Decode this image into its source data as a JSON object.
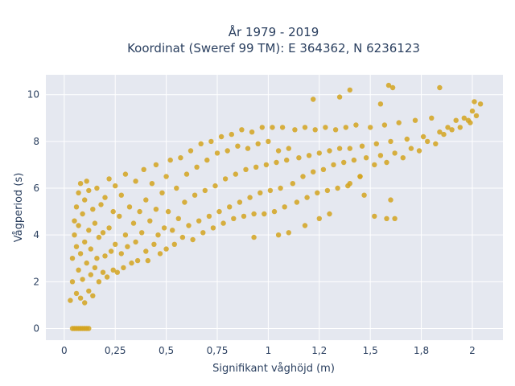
{
  "chart_data": {
    "type": "scatter",
    "title_line1": "År 1979 - 2019",
    "title_line2": "Koordinat (Sweref 99 TM): E 364362, N 6236123",
    "xlabel": "Signifikant våghöjd (m)",
    "ylabel": "Vågperiod (s)",
    "xlim": [
      -0.09,
      2.15
    ],
    "ylim": [
      -0.5,
      10.85
    ],
    "x_ticks": [
      0,
      0.25,
      0.5,
      0.75,
      1,
      1.25,
      1.5,
      1.75,
      2
    ],
    "x_tick_labels": [
      "0",
      "0,25",
      "0,5",
      "0,75",
      "1",
      "1,2",
      "1,5",
      "1,8",
      "2"
    ],
    "y_ticks": [
      0,
      2,
      4,
      6,
      8,
      10
    ],
    "y_tick_labels": [
      "0",
      "2",
      "4",
      "6",
      "8",
      "10"
    ],
    "grid": true,
    "colors": {
      "marker": "#d4a31e",
      "plot_bg": "#e5e8f0",
      "grid": "#ffffff",
      "text": "#2a3f5f"
    },
    "series": [
      {
        "values": [
          [
            0.04,
            0
          ],
          [
            0.05,
            0
          ],
          [
            0.06,
            0
          ],
          [
            0.07,
            0
          ],
          [
            0.08,
            0
          ],
          [
            0.09,
            0
          ],
          [
            0.1,
            0
          ],
          [
            0.11,
            0
          ],
          [
            0.12,
            0
          ],
          [
            0.03,
            1.2
          ],
          [
            0.04,
            2.0
          ],
          [
            0.04,
            3.0
          ],
          [
            0.05,
            4.0
          ],
          [
            0.05,
            4.6
          ],
          [
            0.06,
            1.5
          ],
          [
            0.06,
            3.5
          ],
          [
            0.06,
            5.2
          ],
          [
            0.07,
            2.5
          ],
          [
            0.07,
            4.4
          ],
          [
            0.07,
            5.8
          ],
          [
            0.08,
            1.3
          ],
          [
            0.08,
            3.2
          ],
          [
            0.08,
            6.2
          ],
          [
            0.09,
            2.1
          ],
          [
            0.09,
            4.9
          ],
          [
            0.1,
            1.1
          ],
          [
            0.1,
            3.7
          ],
          [
            0.1,
            5.5
          ],
          [
            0.11,
            2.8
          ],
          [
            0.11,
            6.3
          ],
          [
            0.12,
            1.6
          ],
          [
            0.12,
            4.2
          ],
          [
            0.12,
            5.9
          ],
          [
            0.13,
            2.3
          ],
          [
            0.13,
            3.4
          ],
          [
            0.14,
            1.4
          ],
          [
            0.14,
            5.1
          ],
          [
            0.15,
            2.6
          ],
          [
            0.15,
            4.5
          ],
          [
            0.16,
            3.0
          ],
          [
            0.16,
            6.0
          ],
          [
            0.17,
            2.0
          ],
          [
            0.17,
            3.9
          ],
          [
            0.18,
            5.3
          ],
          [
            0.19,
            2.4
          ],
          [
            0.19,
            4.1
          ],
          [
            0.2,
            3.1
          ],
          [
            0.2,
            5.6
          ],
          [
            0.21,
            2.2
          ],
          [
            0.22,
            4.3
          ],
          [
            0.22,
            6.4
          ],
          [
            0.23,
            3.3
          ],
          [
            0.24,
            2.5
          ],
          [
            0.24,
            5.0
          ],
          [
            0.25,
            3.6
          ],
          [
            0.25,
            6.1
          ],
          [
            0.26,
            2.4
          ],
          [
            0.27,
            4.8
          ],
          [
            0.28,
            3.2
          ],
          [
            0.28,
            5.7
          ],
          [
            0.29,
            2.6
          ],
          [
            0.3,
            4.0
          ],
          [
            0.3,
            6.6
          ],
          [
            0.31,
            3.5
          ],
          [
            0.32,
            5.2
          ],
          [
            0.33,
            2.8
          ],
          [
            0.34,
            4.5
          ],
          [
            0.35,
            6.3
          ],
          [
            0.35,
            3.7
          ],
          [
            0.36,
            2.9
          ],
          [
            0.37,
            5.0
          ],
          [
            0.38,
            4.1
          ],
          [
            0.39,
            6.8
          ],
          [
            0.4,
            3.3
          ],
          [
            0.4,
            5.5
          ],
          [
            0.41,
            2.9
          ],
          [
            0.42,
            4.6
          ],
          [
            0.43,
            6.2
          ],
          [
            0.44,
            3.6
          ],
          [
            0.45,
            5.1
          ],
          [
            0.45,
            7.0
          ],
          [
            0.46,
            4.0
          ],
          [
            0.47,
            3.2
          ],
          [
            0.48,
            5.8
          ],
          [
            0.49,
            4.3
          ],
          [
            0.5,
            6.5
          ],
          [
            0.5,
            3.4
          ],
          [
            0.51,
            5.0
          ],
          [
            0.52,
            7.2
          ],
          [
            0.53,
            4.2
          ],
          [
            0.54,
            3.6
          ],
          [
            0.55,
            6.0
          ],
          [
            0.56,
            4.7
          ],
          [
            0.57,
            7.3
          ],
          [
            0.58,
            3.9
          ],
          [
            0.59,
            5.4
          ],
          [
            0.6,
            6.6
          ],
          [
            0.61,
            4.4
          ],
          [
            0.62,
            7.6
          ],
          [
            0.63,
            3.8
          ],
          [
            0.64,
            5.7
          ],
          [
            0.65,
            6.9
          ],
          [
            0.66,
            4.6
          ],
          [
            0.67,
            7.9
          ],
          [
            0.68,
            4.1
          ],
          [
            0.69,
            5.9
          ],
          [
            0.7,
            7.2
          ],
          [
            0.71,
            4.8
          ],
          [
            0.72,
            8.0
          ],
          [
            0.73,
            4.3
          ],
          [
            0.74,
            6.1
          ],
          [
            0.75,
            7.5
          ],
          [
            0.76,
            5.0
          ],
          [
            0.77,
            8.2
          ],
          [
            0.78,
            4.5
          ],
          [
            0.79,
            6.4
          ],
          [
            0.8,
            7.6
          ],
          [
            0.81,
            5.2
          ],
          [
            0.82,
            8.3
          ],
          [
            0.83,
            4.7
          ],
          [
            0.84,
            6.6
          ],
          [
            0.85,
            7.8
          ],
          [
            0.86,
            5.4
          ],
          [
            0.87,
            8.5
          ],
          [
            0.88,
            4.8
          ],
          [
            0.89,
            6.8
          ],
          [
            0.9,
            7.7
          ],
          [
            0.91,
            5.6
          ],
          [
            0.92,
            8.4
          ],
          [
            0.93,
            4.9
          ],
          [
            0.94,
            6.9
          ],
          [
            0.95,
            7.9
          ],
          [
            0.96,
            5.8
          ],
          [
            0.97,
            8.6
          ],
          [
            0.98,
            4.9
          ],
          [
            0.99,
            7.0
          ],
          [
            1.0,
            8.0
          ],
          [
            1.01,
            5.9
          ],
          [
            1.02,
            8.6
          ],
          [
            1.03,
            5.0
          ],
          [
            1.04,
            7.1
          ],
          [
            1.05,
            7.6
          ],
          [
            1.06,
            6.0
          ],
          [
            1.07,
            8.6
          ],
          [
            1.08,
            5.2
          ],
          [
            1.09,
            7.2
          ],
          [
            1.1,
            7.7
          ],
          [
            1.12,
            6.2
          ],
          [
            1.13,
            8.5
          ],
          [
            1.14,
            5.4
          ],
          [
            1.15,
            7.3
          ],
          [
            1.17,
            6.5
          ],
          [
            1.18,
            8.6
          ],
          [
            1.19,
            5.6
          ],
          [
            1.2,
            7.4
          ],
          [
            1.22,
            6.7
          ],
          [
            1.23,
            8.5
          ],
          [
            1.24,
            5.8
          ],
          [
            1.25,
            7.5
          ],
          [
            1.27,
            6.8
          ],
          [
            1.28,
            8.6
          ],
          [
            1.29,
            5.9
          ],
          [
            1.3,
            7.6
          ],
          [
            1.32,
            7.0
          ],
          [
            1.33,
            8.5
          ],
          [
            1.34,
            6.0
          ],
          [
            1.35,
            7.7
          ],
          [
            1.37,
            7.1
          ],
          [
            1.38,
            8.6
          ],
          [
            1.39,
            6.1
          ],
          [
            1.4,
            7.7
          ],
          [
            1.42,
            7.2
          ],
          [
            1.43,
            8.7
          ],
          [
            1.45,
            6.5
          ],
          [
            1.46,
            7.8
          ],
          [
            1.48,
            7.3
          ],
          [
            1.5,
            8.6
          ],
          [
            1.52,
            7.0
          ],
          [
            1.53,
            7.9
          ],
          [
            1.55,
            7.4
          ],
          [
            1.57,
            8.7
          ],
          [
            1.58,
            7.1
          ],
          [
            1.6,
            8.0
          ],
          [
            1.62,
            7.5
          ],
          [
            1.64,
            8.8
          ],
          [
            1.66,
            7.3
          ],
          [
            1.68,
            8.1
          ],
          [
            1.7,
            7.7
          ],
          [
            1.72,
            8.9
          ],
          [
            1.74,
            7.6
          ],
          [
            1.76,
            8.2
          ],
          [
            1.78,
            8.0
          ],
          [
            1.8,
            9.0
          ],
          [
            1.82,
            7.9
          ],
          [
            1.84,
            8.4
          ],
          [
            1.86,
            8.3
          ],
          [
            1.88,
            8.6
          ],
          [
            1.9,
            8.5
          ],
          [
            1.92,
            8.9
          ],
          [
            1.94,
            8.6
          ],
          [
            1.96,
            9.0
          ],
          [
            1.98,
            8.9
          ],
          [
            2.0,
            9.3
          ],
          [
            2.02,
            9.1
          ],
          [
            2.04,
            9.6
          ],
          [
            1.99,
            8.8
          ],
          [
            2.01,
            9.7
          ],
          [
            1.59,
            10.4
          ],
          [
            1.61,
            10.3
          ],
          [
            1.84,
            10.3
          ],
          [
            1.4,
            10.2
          ],
          [
            1.22,
            9.8
          ],
          [
            1.35,
            9.9
          ],
          [
            1.55,
            9.6
          ],
          [
            1.52,
            4.8
          ],
          [
            1.58,
            4.7
          ],
          [
            1.62,
            4.7
          ],
          [
            1.47,
            5.7
          ],
          [
            1.6,
            5.5
          ],
          [
            1.3,
            4.9
          ],
          [
            1.25,
            4.7
          ],
          [
            1.18,
            4.4
          ],
          [
            1.4,
            6.2
          ],
          [
            1.45,
            6.5
          ],
          [
            0.93,
            3.9
          ],
          [
            1.1,
            4.1
          ],
          [
            1.05,
            4.0
          ]
        ]
      }
    ]
  }
}
